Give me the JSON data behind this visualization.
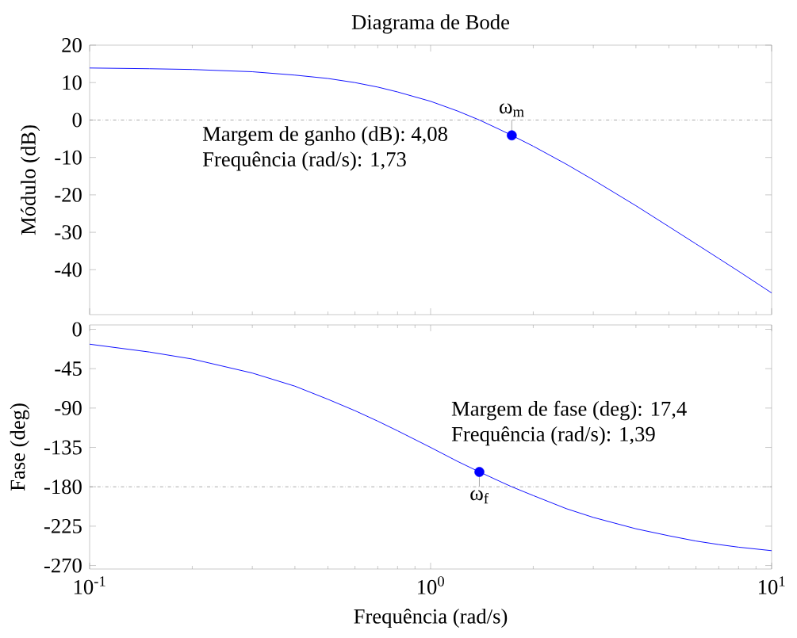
{
  "chart_data": [
    {
      "type": "line",
      "title": "Diagrama de Bode",
      "ylabel": "Módulo (dB)",
      "log": "x",
      "xlim": [
        0.1,
        10
      ],
      "ylim": [
        -52,
        20
      ],
      "xticks": [
        {
          "value": 0.1,
          "label": null
        },
        {
          "value": 1,
          "label": null
        },
        {
          "value": 10,
          "label": null
        }
      ],
      "yticks": [
        20,
        10,
        0,
        -10,
        -20,
        -30,
        -40
      ],
      "tick_labels": "y",
      "x": [
        0.1,
        0.15,
        0.2,
        0.3,
        0.4,
        0.5,
        0.6,
        0.7,
        0.8,
        1,
        1.2,
        1.39,
        1.6,
        1.73,
        2,
        2.5,
        3,
        4,
        5,
        6,
        7,
        8,
        10
      ],
      "series": [
        {
          "color": "#0000ff",
          "values": [
            13.9,
            13.7,
            13.5,
            12.9,
            12.0,
            11.1,
            10.0,
            8.8,
            7.5,
            5.0,
            2.4,
            0.0,
            -2.6,
            -4.1,
            -7.0,
            -11.8,
            -16.0,
            -22.9,
            -28.5,
            -33.1,
            -37.0,
            -40.4,
            -46.2
          ]
        },
        {
          "type": "scatter",
          "color": "#0000ff",
          "marker": "circle",
          "x": [
            1.73
          ],
          "values": [
            -4.1
          ]
        }
      ],
      "ref_lines": [
        {
          "axis": "y",
          "value": 0,
          "color": "#808080",
          "line_style": "dashdot"
        }
      ],
      "annotations": [
        "Margem de ganho (dB): 4,08",
        "Frequência (rad/s): 1,73",
        {
          "text": "ω$_{m}$",
          "x": 1.73,
          "y": 0
        }
      ]
    },
    {
      "type": "line",
      "xlabel": "Frequência (rad/s)",
      "ylabel": "Fase (deg)",
      "log": "x",
      "xlim": [
        0.1,
        10
      ],
      "ylim": [
        -274,
        5
      ],
      "xticks": [
        {
          "value": 0.1,
          "label": "10$^{-1}$"
        },
        {
          "value": 1,
          "label": "10$^{0}$"
        },
        {
          "value": 10,
          "label": "10$^{1}$"
        }
      ],
      "yticks": [
        0,
        -45,
        -90,
        -135,
        -180,
        -225,
        -270
      ],
      "x": [
        0.1,
        0.15,
        0.2,
        0.3,
        0.4,
        0.5,
        0.6,
        0.7,
        0.8,
        1,
        1.2,
        1.39,
        1.6,
        1.73,
        2,
        2.5,
        3,
        4,
        5,
        6,
        7,
        8,
        10
      ],
      "series": [
        {
          "color": "#0000ff",
          "values": [
            -17,
            -26,
            -34,
            -50,
            -65,
            -80,
            -93,
            -105,
            -116,
            -135,
            -151,
            -163,
            -174,
            -180,
            -190,
            -205,
            -215,
            -228,
            -236,
            -242,
            -246,
            -249,
            -253
          ]
        },
        {
          "type": "scatter",
          "color": "#0000ff",
          "marker": "circle",
          "x": [
            1.39
          ],
          "values": [
            -163
          ]
        }
      ],
      "ref_lines": [
        {
          "axis": "y",
          "value": -180,
          "color": "#808080",
          "line_style": "dashdot"
        }
      ],
      "annotations": [
        "Margem de fase (deg): 17,4",
        "Frequência (rad/s): 1,39",
        {
          "text": "ω$_{f}$",
          "x": 1.39,
          "y": -180
        }
      ]
    }
  ]
}
